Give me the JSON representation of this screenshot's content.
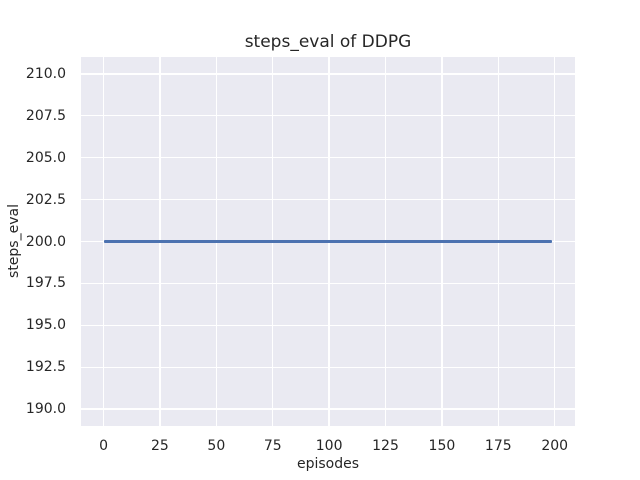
{
  "chart_data": {
    "type": "line",
    "title": "steps_eval of DDPG",
    "xlabel": "episodes",
    "ylabel": "steps_eval",
    "x_ticks": [
      0,
      25,
      50,
      75,
      100,
      125,
      150,
      175,
      200
    ],
    "x_tick_labels": [
      "0",
      "25",
      "50",
      "75",
      "100",
      "125",
      "150",
      "175",
      "200"
    ],
    "y_ticks": [
      210.0,
      207.5,
      205.0,
      202.5,
      200.0,
      197.5,
      195.0,
      192.5,
      190.0
    ],
    "y_tick_labels": [
      "210.0",
      "207.5",
      "205.0",
      "202.5",
      "200.0",
      "197.5",
      "195.0",
      "192.5",
      "190.0"
    ],
    "xlim": [
      -10,
      209
    ],
    "ylim": [
      189,
      211
    ],
    "grid": true,
    "legend": false,
    "plot_background": "#EAEAF2",
    "grid_color": "#FFFFFF",
    "text_color": "#262626",
    "series": [
      {
        "name": "DDPG",
        "color": "#4C72B0",
        "x": [
          0,
          199
        ],
        "y": [
          200,
          200
        ]
      }
    ]
  }
}
